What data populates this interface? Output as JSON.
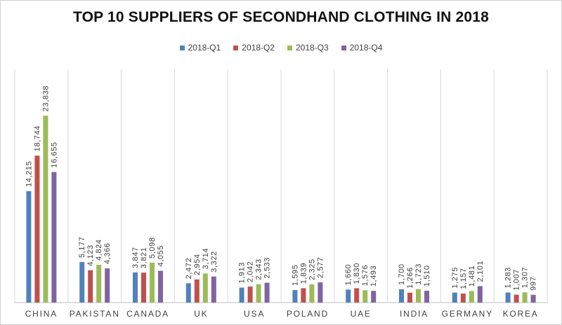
{
  "chart_data": {
    "type": "bar",
    "title": "TOP 10 SUPPLIERS OF SECONDHAND CLOTHING IN 2018",
    "categories": [
      "CHINA",
      "PAKISTAN",
      "CANADA",
      "UK",
      "USA",
      "POLAND",
      "UAE",
      "INDIA",
      "GERMANY",
      "KOREA"
    ],
    "series": [
      {
        "name": "2018-Q1",
        "color": "#4f81bd",
        "values": [
          14215,
          5177,
          3847,
          2472,
          1913,
          1595,
          1660,
          1700,
          1275,
          1283
        ]
      },
      {
        "name": "2018-Q2",
        "color": "#c0504d",
        "values": [
          18744,
          4123,
          3821,
          2954,
          2042,
          1839,
          1830,
          1266,
          1157,
          1007
        ]
      },
      {
        "name": "2018-Q3",
        "color": "#9bbb59",
        "values": [
          23838,
          4824,
          5098,
          3714,
          2343,
          2325,
          1576,
          1723,
          1481,
          1307
        ]
      },
      {
        "name": "2018-Q4",
        "color": "#8064a2",
        "values": [
          16655,
          4366,
          4055,
          3322,
          2533,
          2577,
          1493,
          1510,
          2101,
          997
        ]
      }
    ],
    "legend_position": "top",
    "grid": false,
    "ylim": [
      0,
      26000
    ]
  }
}
